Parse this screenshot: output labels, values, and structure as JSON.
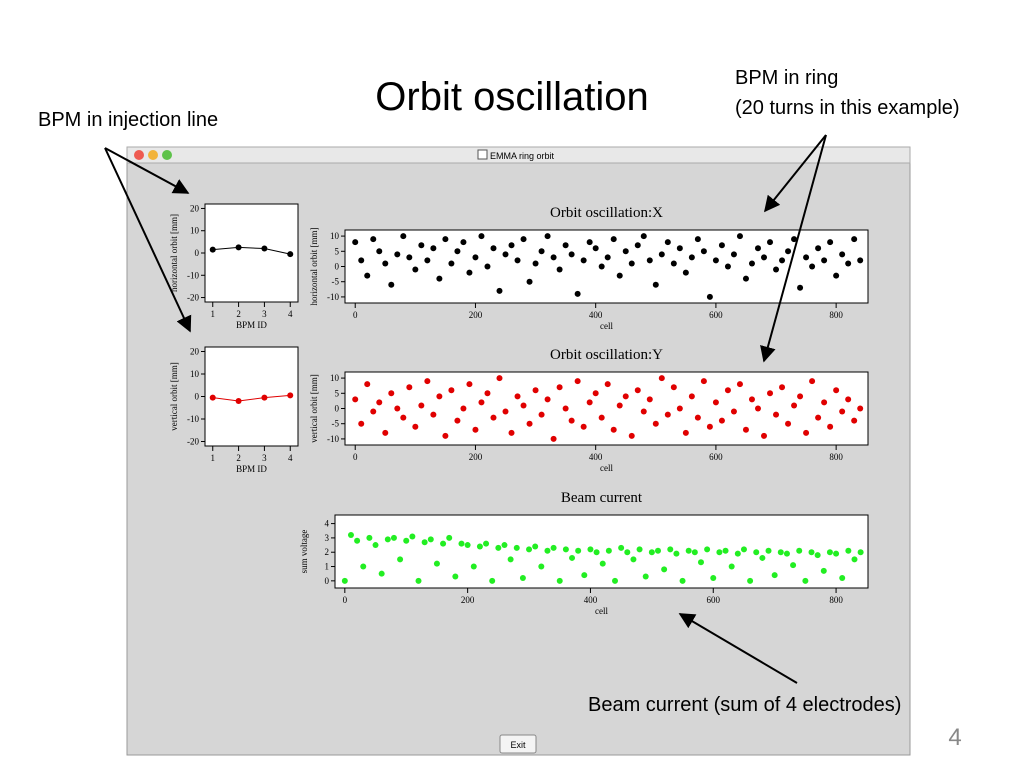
{
  "slide": {
    "title": "Orbit oscillation",
    "annotations": [
      "BPM in injection line",
      "BPM in ring",
      "(20 turns in this example)",
      "Beam current (sum of 4 electrodes)"
    ],
    "page_number": "4"
  },
  "window": {
    "title": "EMMA ring orbit",
    "button": "Exit"
  },
  "chart_data": [
    {
      "type": "line",
      "ylabel": "horizontal orbit [mm]",
      "xlabel": "BPM ID",
      "color": "#000000",
      "x": [
        1,
        2,
        3,
        4
      ],
      "values": [
        1.5,
        2.5,
        2,
        -0.5
      ],
      "xlim": [
        0.7,
        4.3
      ],
      "ylim": [
        -22,
        22
      ],
      "xticks": [
        1,
        2,
        3,
        4
      ],
      "yticks": [
        -20,
        -10,
        0,
        10,
        20
      ]
    },
    {
      "type": "line",
      "ylabel": "vertical orbit [mm]",
      "xlabel": "BPM ID",
      "color": "#e00000",
      "x": [
        1,
        2,
        3,
        4
      ],
      "values": [
        -0.5,
        -2,
        -0.5,
        0.5
      ],
      "xlim": [
        0.7,
        4.3
      ],
      "ylim": [
        -22,
        22
      ],
      "xticks": [
        1,
        2,
        3,
        4
      ],
      "yticks": [
        -20,
        -10,
        0,
        10,
        20
      ]
    },
    {
      "type": "scatter",
      "title": "Orbit oscillation:X",
      "ylabel": "horizontal orbit [mm]",
      "xlabel": "cell",
      "color": "#000000",
      "x": [
        0,
        10,
        20,
        30,
        40,
        50,
        60,
        70,
        80,
        90,
        100,
        110,
        120,
        130,
        140,
        150,
        160,
        170,
        180,
        190,
        200,
        210,
        220,
        230,
        240,
        250,
        260,
        270,
        280,
        290,
        300,
        310,
        320,
        330,
        340,
        350,
        360,
        370,
        380,
        390,
        400,
        410,
        420,
        430,
        440,
        450,
        460,
        470,
        480,
        490,
        500,
        510,
        520,
        530,
        540,
        550,
        560,
        570,
        580,
        590,
        600,
        610,
        620,
        630,
        640,
        650,
        660,
        670,
        680,
        690,
        700,
        710,
        720,
        730,
        740,
        750,
        760,
        770,
        780,
        790,
        800,
        810,
        820,
        830,
        840
      ],
      "values": [
        8,
        2,
        -3,
        9,
        5,
        1,
        -6,
        4,
        10,
        3,
        -1,
        7,
        2,
        6,
        -4,
        9,
        1,
        5,
        8,
        -2,
        3,
        10,
        0,
        6,
        -8,
        4,
        7,
        2,
        9,
        -5,
        1,
        5,
        10,
        3,
        -1,
        7,
        4,
        -9,
        2,
        8,
        6,
        0,
        3,
        9,
        -3,
        5,
        1,
        7,
        10,
        2,
        -6,
        4,
        8,
        1,
        6,
        -2,
        3,
        9,
        5,
        -10,
        2,
        7,
        0,
        4,
        10,
        -4,
        1,
        6,
        3,
        8,
        -1,
        2,
        5,
        9,
        -7,
        3,
        0,
        6,
        2,
        8,
        -3,
        4,
        1,
        9,
        2
      ],
      "xlim": [
        -17,
        853
      ],
      "ylim": [
        -12,
        12
      ],
      "xticks": [
        0,
        200,
        400,
        600,
        800
      ],
      "yticks": [
        -10,
        -5,
        0,
        5,
        10
      ]
    },
    {
      "type": "scatter",
      "title": "Orbit oscillation:Y",
      "ylabel": "vertical orbit [mm]",
      "xlabel": "cell",
      "color": "#e00000",
      "x": [
        0,
        10,
        20,
        30,
        40,
        50,
        60,
        70,
        80,
        90,
        100,
        110,
        120,
        130,
        140,
        150,
        160,
        170,
        180,
        190,
        200,
        210,
        220,
        230,
        240,
        250,
        260,
        270,
        280,
        290,
        300,
        310,
        320,
        330,
        340,
        350,
        360,
        370,
        380,
        390,
        400,
        410,
        420,
        430,
        440,
        450,
        460,
        470,
        480,
        490,
        500,
        510,
        520,
        530,
        540,
        550,
        560,
        570,
        580,
        590,
        600,
        610,
        620,
        630,
        640,
        650,
        660,
        670,
        680,
        690,
        700,
        710,
        720,
        730,
        740,
        750,
        760,
        770,
        780,
        790,
        800,
        810,
        820,
        830,
        840
      ],
      "values": [
        3,
        -5,
        8,
        -1,
        2,
        -8,
        5,
        0,
        -3,
        7,
        -6,
        1,
        9,
        -2,
        4,
        -9,
        6,
        -4,
        0,
        8,
        -7,
        2,
        5,
        -3,
        10,
        -1,
        -8,
        4,
        1,
        -5,
        6,
        -2,
        3,
        -10,
        7,
        0,
        -4,
        9,
        -6,
        2,
        5,
        -3,
        8,
        -7,
        1,
        4,
        -9,
        6,
        -1,
        3,
        -5,
        10,
        -2,
        7,
        0,
        -8,
        4,
        -3,
        9,
        -6,
        2,
        -4,
        6,
        -1,
        8,
        -7,
        3,
        0,
        -9,
        5,
        -2,
        7,
        -5,
        1,
        4,
        -8,
        9,
        -3,
        2,
        -6,
        6,
        -1,
        3,
        -4,
        0
      ],
      "xlim": [
        -17,
        853
      ],
      "ylim": [
        -12,
        12
      ],
      "xticks": [
        0,
        200,
        400,
        600,
        800
      ],
      "yticks": [
        -10,
        -5,
        0,
        5,
        10
      ]
    },
    {
      "type": "scatter",
      "title": "Beam current",
      "ylabel": "sum voltage",
      "xlabel": "cell",
      "color": "#22ee22",
      "x": [
        0,
        10,
        20,
        30,
        40,
        50,
        60,
        70,
        80,
        90,
        100,
        110,
        120,
        130,
        140,
        150,
        160,
        170,
        180,
        190,
        200,
        210,
        220,
        230,
        240,
        250,
        260,
        270,
        280,
        290,
        300,
        310,
        320,
        330,
        340,
        350,
        360,
        370,
        380,
        390,
        400,
        410,
        420,
        430,
        440,
        450,
        460,
        470,
        480,
        490,
        500,
        510,
        520,
        530,
        540,
        550,
        560,
        570,
        580,
        590,
        600,
        610,
        620,
        630,
        640,
        650,
        660,
        670,
        680,
        690,
        700,
        710,
        720,
        730,
        740,
        750,
        760,
        770,
        780,
        790,
        800,
        810,
        820,
        830,
        840
      ],
      "values": [
        0,
        3.2,
        2.8,
        1,
        3,
        2.5,
        0.5,
        2.9,
        3,
        1.5,
        2.8,
        3.1,
        0,
        2.7,
        2.9,
        1.2,
        2.6,
        3,
        0.3,
        2.6,
        2.5,
        1,
        2.4,
        2.6,
        0,
        2.3,
        2.5,
        1.5,
        2.3,
        0.2,
        2.2,
        2.4,
        1,
        2.1,
        2.3,
        0,
        2.2,
        1.6,
        2.1,
        0.4,
        2.2,
        2,
        1.2,
        2.1,
        0,
        2.3,
        2,
        1.5,
        2.2,
        0.3,
        2,
        2.1,
        0.8,
        2.2,
        1.9,
        0,
        2.1,
        2,
        1.3,
        2.2,
        0.2,
        2,
        2.1,
        1,
        1.9,
        2.2,
        0,
        2,
        1.6,
        2.1,
        0.4,
        2,
        1.9,
        1.1,
        2.1,
        0,
        2,
        1.8,
        0.7,
        2,
        1.9,
        0.2,
        2.1,
        1.5,
        2
      ],
      "xlim": [
        -16,
        852
      ],
      "ylim": [
        -0.5,
        4.6
      ],
      "xticks": [
        0,
        200,
        400,
        600,
        800
      ],
      "yticks": [
        0,
        1,
        2,
        3,
        4
      ]
    }
  ]
}
